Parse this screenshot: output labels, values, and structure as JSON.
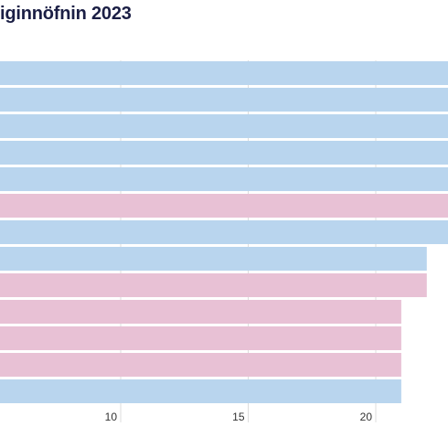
{
  "title": "iginnöfnin 2023",
  "colors": {
    "blue": "#b9d5ee",
    "pink": "#e8c1d5",
    "grid": "#dddddd",
    "title": "#1b1f45"
  },
  "chart_data": {
    "type": "bar",
    "orientation": "horizontal",
    "title": "iginnöfnin 2023",
    "xlabel": "",
    "ylabel": "",
    "categories": [
      "",
      "",
      "",
      "",
      "",
      "",
      "",
      "",
      "",
      "",
      "",
      "",
      ""
    ],
    "values": [
      23,
      23,
      23,
      23,
      23,
      23,
      23,
      22,
      22,
      21,
      21,
      21,
      21
    ],
    "bar_colors": [
      "blue",
      "blue",
      "blue",
      "blue",
      "blue",
      "pink",
      "blue",
      "blue",
      "pink",
      "pink",
      "pink",
      "pink",
      "blue"
    ],
    "xlim": [
      6,
      24
    ],
    "xticks": [
      10,
      15,
      20
    ],
    "grid": true
  }
}
